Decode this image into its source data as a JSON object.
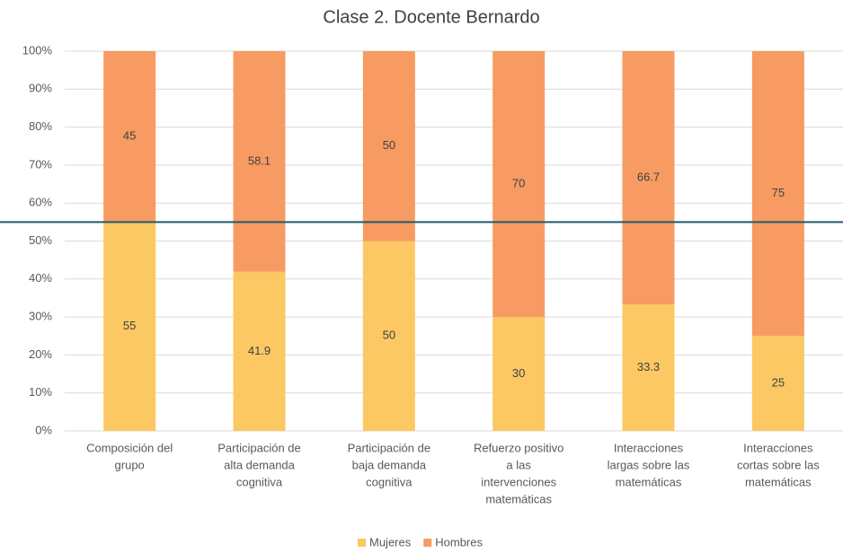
{
  "chart_data": {
    "type": "stacked_bar",
    "title": "Clase 2. Docente Bernardo",
    "categories": [
      [
        "Composición del",
        "grupo"
      ],
      [
        "Participación de",
        "alta demanda",
        "cognitiva"
      ],
      [
        "Participación de",
        "baja demanda",
        "cognitiva"
      ],
      [
        "Refuerzo positivo",
        "a las",
        "intervenciones",
        "matemáticas"
      ],
      [
        "Interacciones",
        "largas sobre las",
        "matemáticas"
      ],
      [
        "Interacciones",
        "cortas sobre las",
        "matemáticas"
      ]
    ],
    "series": [
      {
        "name": "Mujeres",
        "color": "#fbc863",
        "values": [
          55,
          41.9,
          50,
          30,
          33.3,
          25
        ]
      },
      {
        "name": "Hombres",
        "color": "#f79b62",
        "values": [
          45,
          58.1,
          50,
          70,
          66.7,
          75
        ]
      }
    ],
    "ylim": [
      0,
      100
    ],
    "yticks": [
      {
        "value": 0,
        "label": "0%"
      },
      {
        "value": 10,
        "label": "10%"
      },
      {
        "value": 20,
        "label": "20%"
      },
      {
        "value": 30,
        "label": "30%"
      },
      {
        "value": 40,
        "label": "40%"
      },
      {
        "value": 50,
        "label": "50%"
      },
      {
        "value": 60,
        "label": "60%"
      },
      {
        "value": 70,
        "label": "70%"
      },
      {
        "value": 80,
        "label": "80%"
      },
      {
        "value": 90,
        "label": "90%"
      },
      {
        "value": 100,
        "label": "100%"
      }
    ],
    "grid": true,
    "reference_line": {
      "value": 55,
      "color": "#1f5a6b"
    },
    "legend": "bottom"
  }
}
